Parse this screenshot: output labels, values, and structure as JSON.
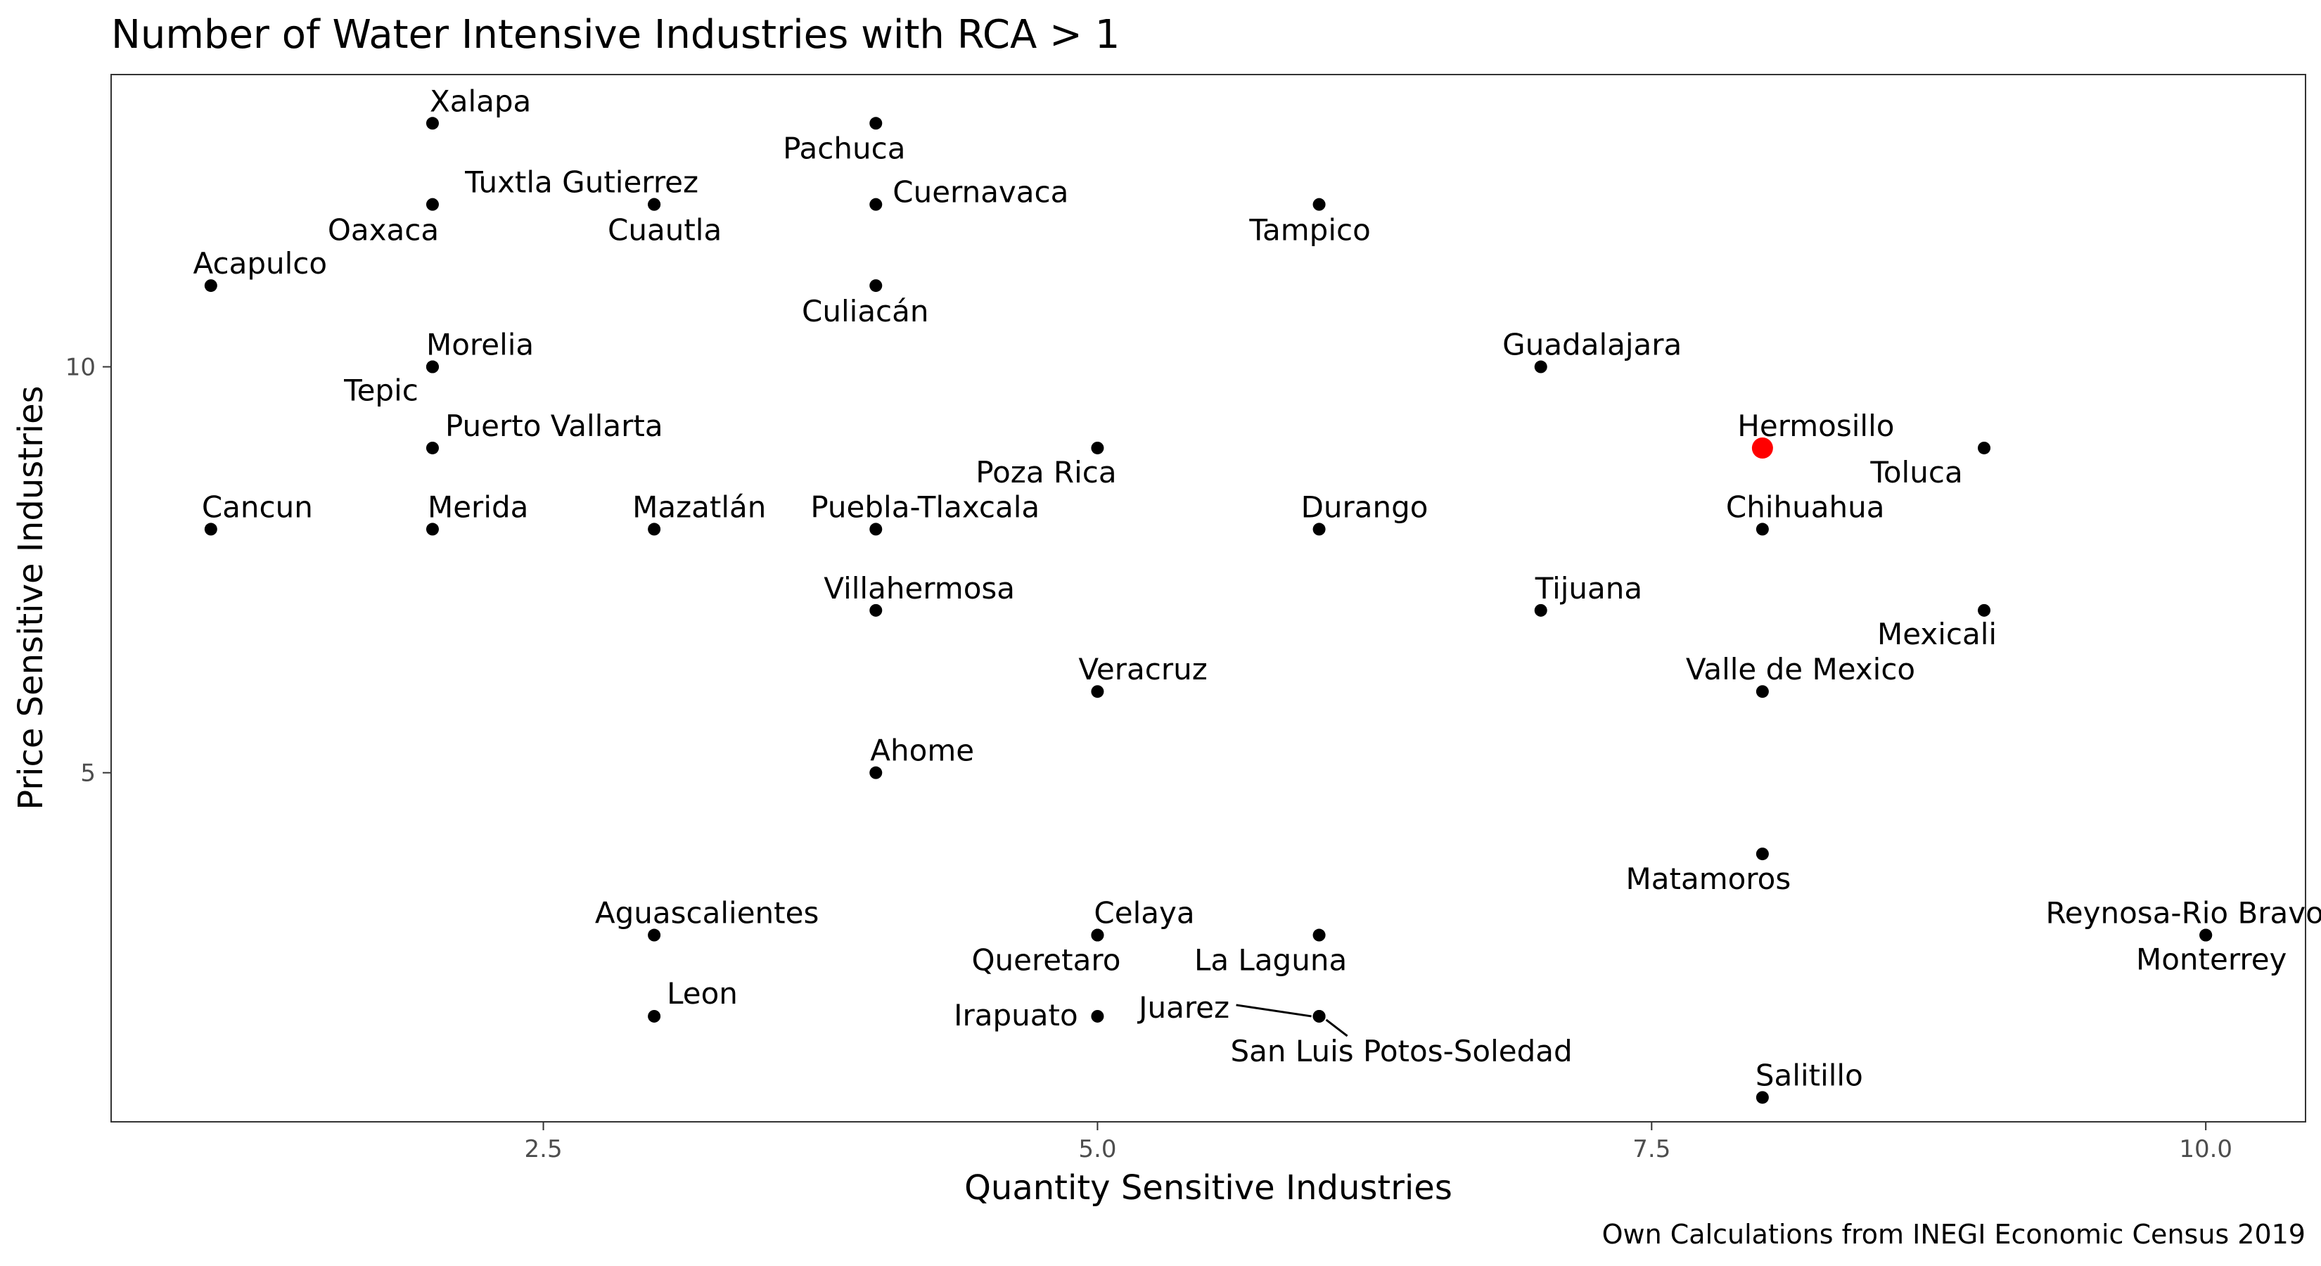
{
  "chart_data": {
    "type": "scatter",
    "title": "Number of Water Intensive Industries with RCA > 1",
    "xlabel": "Quantity Sensitive Industries",
    "ylabel": "Price Sensitive Industries",
    "caption": "Own Calculations from INEGI Economic Census 2019",
    "xlim": [
      0.55,
      10.45
    ],
    "ylim": [
      0.7,
      13.6
    ],
    "xticks": [
      2.5,
      5.0,
      7.5,
      10.0
    ],
    "xtick_labels": [
      "2.5",
      "5.0",
      "7.5",
      "10.0"
    ],
    "yticks": [
      5,
      10
    ],
    "ytick_labels": [
      "5",
      "10"
    ],
    "grid": false,
    "highlight_color": "#ff0000",
    "point_color": "#000000",
    "points": [
      {
        "label": "Xalapa",
        "x": 2,
        "y": 13
      },
      {
        "label": "Pachuca",
        "x": 4,
        "y": 13
      },
      {
        "label": "Oaxaca",
        "x": 2,
        "y": 12
      },
      {
        "label": "Tuxtla Gutierrez",
        "x": 3,
        "y": 12
      },
      {
        "label": "Cuautla",
        "x": 3,
        "y": 12
      },
      {
        "label": "Cuernavaca",
        "x": 4,
        "y": 12
      },
      {
        "label": "Tampico",
        "x": 6,
        "y": 12
      },
      {
        "label": "Acapulco",
        "x": 1,
        "y": 11
      },
      {
        "label": "Culiacán",
        "x": 4,
        "y": 11
      },
      {
        "label": "Morelia",
        "x": 2,
        "y": 10
      },
      {
        "label": "Tepic",
        "x": 2,
        "y": 10
      },
      {
        "label": "Guadalajara",
        "x": 7,
        "y": 10
      },
      {
        "label": "Puerto Vallarta",
        "x": 2,
        "y": 9
      },
      {
        "label": "Poza Rica",
        "x": 5,
        "y": 9
      },
      {
        "label": "Hermosillo",
        "x": 8,
        "y": 9,
        "highlight": true
      },
      {
        "label": "Toluca",
        "x": 9,
        "y": 9
      },
      {
        "label": "Cancun",
        "x": 1,
        "y": 8
      },
      {
        "label": "Merida",
        "x": 2,
        "y": 8
      },
      {
        "label": "Mazatlán",
        "x": 3,
        "y": 8
      },
      {
        "label": "Puebla-Tlaxcala",
        "x": 4,
        "y": 8
      },
      {
        "label": "Durango",
        "x": 6,
        "y": 8
      },
      {
        "label": "Chihuahua",
        "x": 8,
        "y": 8
      },
      {
        "label": "Villahermosa",
        "x": 4,
        "y": 7
      },
      {
        "label": "Tijuana",
        "x": 7,
        "y": 7
      },
      {
        "label": "Mexicali",
        "x": 9,
        "y": 7
      },
      {
        "label": "Veracruz",
        "x": 5,
        "y": 6
      },
      {
        "label": "Valle de Mexico",
        "x": 8,
        "y": 6
      },
      {
        "label": "Ahome",
        "x": 4,
        "y": 5
      },
      {
        "label": "Matamoros",
        "x": 8,
        "y": 4
      },
      {
        "label": "Aguascalientes",
        "x": 3,
        "y": 3
      },
      {
        "label": "Celaya",
        "x": 5,
        "y": 3
      },
      {
        "label": "Queretaro",
        "x": 5,
        "y": 3
      },
      {
        "label": "La Laguna",
        "x": 6,
        "y": 3
      },
      {
        "label": "Reynosa-Rio Bravo",
        "x": 10,
        "y": 3
      },
      {
        "label": "Monterrey",
        "x": 10,
        "y": 3
      },
      {
        "label": "Leon",
        "x": 3,
        "y": 2
      },
      {
        "label": "Irapuato",
        "x": 5,
        "y": 2
      },
      {
        "label": "Juarez",
        "x": 6,
        "y": 2
      },
      {
        "label": "San Luis Potos-Soledad",
        "x": 6,
        "y": 2
      },
      {
        "label": "Salitillo",
        "x": 8,
        "y": 1
      }
    ]
  }
}
